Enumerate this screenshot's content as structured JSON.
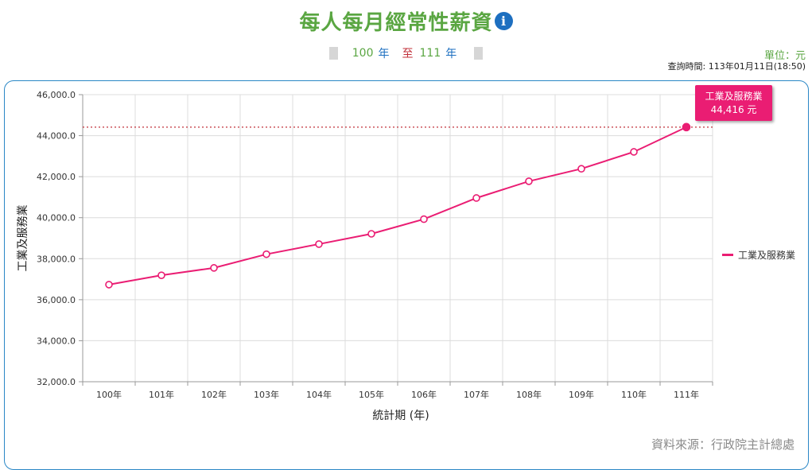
{
  "header": {
    "title": "每人每月經常性薪資",
    "info_icon": "info-icon",
    "range": {
      "from": "100",
      "from_unit": "年",
      "to_word": "至",
      "to": "111",
      "to_unit": "年"
    },
    "unit": "單位：元",
    "query_time": "查詢時間: 113年01月11日(18:50)"
  },
  "source": "資料來源：行政院主計總處",
  "tooltip": {
    "series": "工業及服務業",
    "value": "44,416 元"
  },
  "colors": {
    "title": "#5aa642",
    "series": "#ea1d73",
    "frame": "#2a87c6",
    "reference_line": "#c2303a"
  },
  "chart_data": {
    "type": "line",
    "categories": [
      "100年",
      "101年",
      "102年",
      "103年",
      "104年",
      "105年",
      "106年",
      "107年",
      "108年",
      "109年",
      "110年",
      "111年"
    ],
    "series": [
      {
        "name": "工業及服務業",
        "values": [
          36735,
          37190,
          37552,
          38218,
          38712,
          39213,
          39928,
          40959,
          41776,
          42385,
          43209,
          44416
        ]
      }
    ],
    "y_ticks": [
      "32,000.0",
      "34,000.0",
      "36,000.0",
      "38,000.0",
      "40,000.0",
      "42,000.0",
      "44,000.0",
      "46,000.0"
    ],
    "ylim": [
      32000,
      46000
    ],
    "xlabel": "統計期 (年)",
    "ylabel": "工業及服務業",
    "reference_line": 44416,
    "highlighted_index": 11,
    "legend_position": "right",
    "grid": true
  }
}
